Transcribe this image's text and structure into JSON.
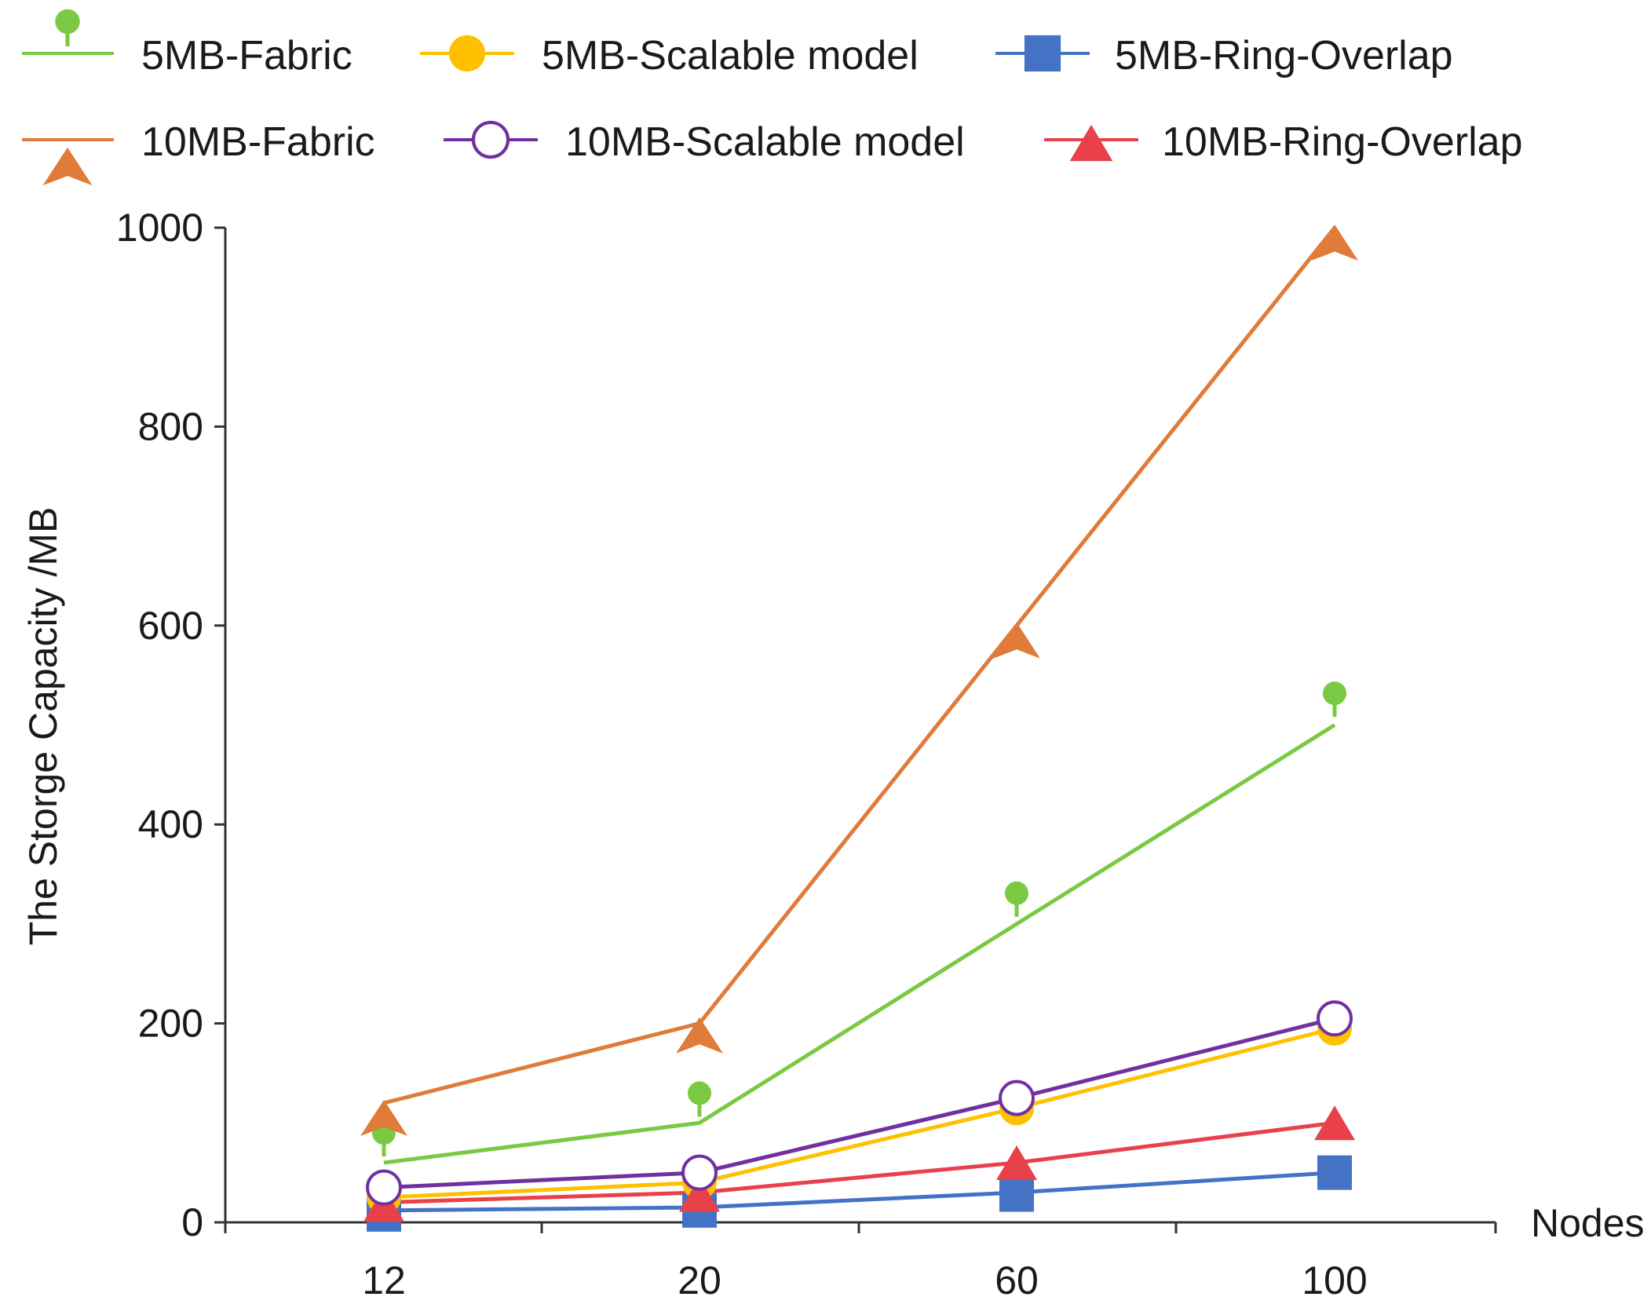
{
  "chart_data": {
    "type": "line",
    "title": "",
    "xlabel": "Nodes",
    "ylabel": "The Storge Capacity /MB",
    "categories": [
      "12",
      "20",
      "60",
      "100"
    ],
    "ylim": [
      0,
      1000
    ],
    "yticks": [
      "0",
      "200",
      "400",
      "600",
      "800",
      "1000"
    ],
    "legend_position": "top",
    "series": [
      {
        "name": "5MB-Fabric",
        "color": "#7ac943",
        "marker": "pin",
        "line": [
          60,
          100,
          300,
          500
        ],
        "values": [
          82,
          122,
          323,
          524
        ]
      },
      {
        "name": "5MB-Scalable model",
        "color": "#ffc000",
        "marker": "circle-filled",
        "line": [
          25,
          40,
          115,
          195
        ],
        "values": [
          25,
          40,
          115,
          195
        ]
      },
      {
        "name": "5MB-Ring-Overlap",
        "color": "#4472c4",
        "marker": "square",
        "line": [
          12,
          15,
          30,
          50
        ],
        "values": [
          8,
          12,
          28,
          50
        ]
      },
      {
        "name": "10MB-Fabric",
        "color": "#e07b39",
        "marker": "star-arrow",
        "line": [
          120,
          200,
          600,
          1000
        ],
        "values": [
          105,
          188,
          585,
          985
        ]
      },
      {
        "name": "10MB-Scalable model",
        "color": "#7030a0",
        "marker": "circle-open",
        "line": [
          35,
          50,
          125,
          205
        ],
        "values": [
          35,
          50,
          125,
          205
        ]
      },
      {
        "name": "10MB-Ring-Overlap",
        "color": "#e8414a",
        "marker": "triangle",
        "line": [
          20,
          30,
          60,
          100
        ],
        "values": [
          18,
          28,
          60,
          100
        ]
      }
    ]
  }
}
